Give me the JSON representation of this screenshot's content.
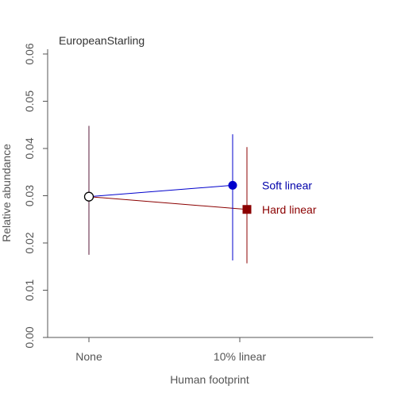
{
  "chart_data": {
    "type": "scatter",
    "title": "EuropeanStarling",
    "xlabel": "Human footprint",
    "ylabel": "Relative abundance",
    "categories": [
      "None",
      "10% linear"
    ],
    "ylim": [
      0,
      0.06
    ],
    "yticks": [
      "0.00",
      "0.01",
      "0.02",
      "0.03",
      "0.04",
      "0.05",
      "0.06"
    ],
    "grid": false,
    "baseline": {
      "category": "None",
      "value": 0.0298,
      "lower": 0.0175,
      "upper": 0.0448,
      "color": "#000000",
      "error_color": "#5a1a3a"
    },
    "series": [
      {
        "name": "Soft linear",
        "category": "10% linear",
        "value": 0.0322,
        "lower": 0.0163,
        "upper": 0.043,
        "color": "#0000cc",
        "marker": "circle",
        "label_color": "#0000aa"
      },
      {
        "name": "Hard linear",
        "category": "10% linear",
        "value": 0.0271,
        "lower": 0.0157,
        "upper": 0.0403,
        "color": "#8b0000",
        "marker": "square",
        "label_color": "#8b0000"
      }
    ]
  }
}
